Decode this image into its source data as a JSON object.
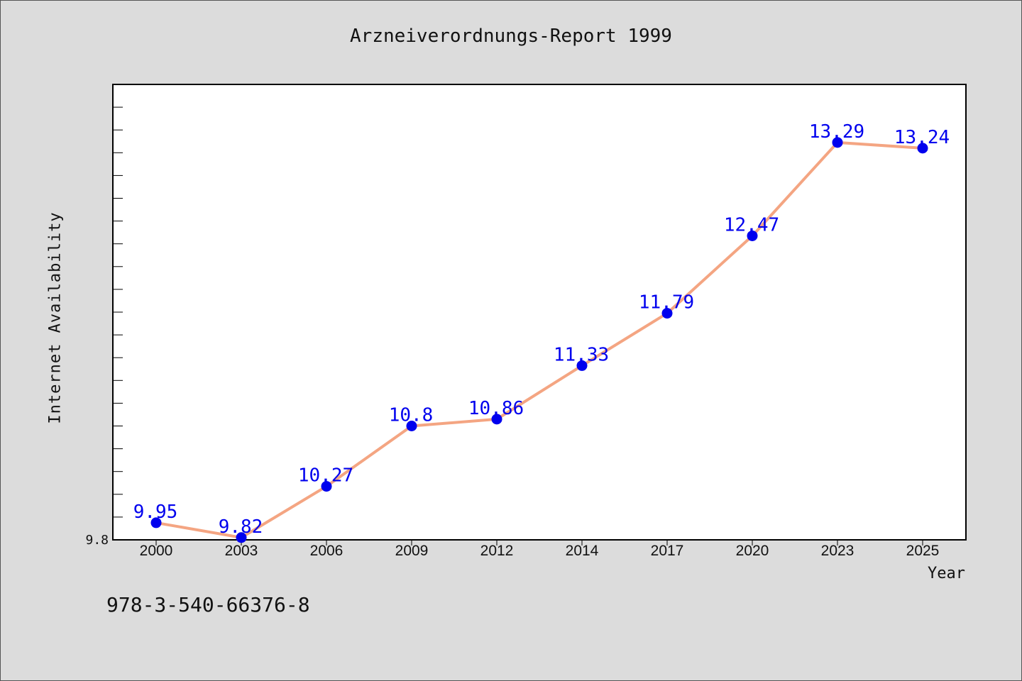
{
  "chart_data": {
    "type": "line",
    "title": "Arzneiverordnungs-Report 1999",
    "xlabel": "Year",
    "ylabel": "Internet Availability",
    "categories": [
      "2000",
      "2003",
      "2006",
      "2009",
      "2012",
      "2014",
      "2017",
      "2020",
      "2023",
      "2025"
    ],
    "series": [
      {
        "values": [
          9.95,
          9.82,
          10.27,
          10.8,
          10.86,
          11.33,
          11.79,
          12.47,
          13.29,
          13.24
        ],
        "data_labels": [
          "9.95",
          "9.82",
          "10.27",
          "10.8",
          "10.86",
          "11.33",
          "11.79",
          "12.47",
          "13.29",
          "13.24"
        ]
      }
    ],
    "y_tick_labels": [
      "9.8"
    ],
    "ylim": [
      9.8,
      13.8
    ],
    "grid": false,
    "colors": {
      "line": "#f4a582",
      "marker": "#0000ee",
      "data_label": "#0000ee",
      "plot_background": "#ffffff",
      "figure_background": "#dcdcdc"
    }
  },
  "footnote": "978-3-540-66376-8"
}
